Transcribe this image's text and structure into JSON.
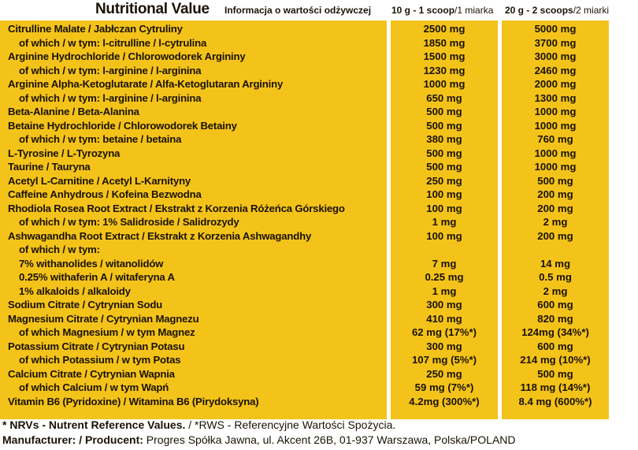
{
  "header": {
    "title": "Nutritional Value",
    "subtitle": "Informacja o wartości odżywczej",
    "col1_bold": "10 g - 1 scoop",
    "col1_rest": "/1 miarka",
    "col2_bold": "20 g - 2 scoops",
    "col2_rest": "/2 miarki"
  },
  "rows": [
    {
      "label": "Citrulline Malate / Jabłczan Cytruliny",
      "v1": "2500 mg",
      "v2": "5000 mg",
      "indent": false
    },
    {
      "label": "of which / w tym: l-citrulline / l-cytrulina",
      "v1": "1850 mg",
      "v2": "3700 mg",
      "indent": true
    },
    {
      "label": "Arginine Hydrochloride / Chlorowodorek Argininy",
      "v1": "1500 mg",
      "v2": "3000 mg",
      "indent": false
    },
    {
      "label": "of which / w tym: l-arginine / l-arginina",
      "v1": "1230 mg",
      "v2": "2460 mg",
      "indent": true
    },
    {
      "label": "Arginine Alpha-Ketoglutarate / Alfa-Ketoglutaran Argininy",
      "v1": "1000 mg",
      "v2": "2000 mg",
      "indent": false
    },
    {
      "label": "of which / w tym: l-arginine / l-arginina",
      "v1": "650 mg",
      "v2": "1300 mg",
      "indent": true
    },
    {
      "label": "Beta-Alanine / Beta-Alanina",
      "v1": "500 mg",
      "v2": "1000 mg",
      "indent": false
    },
    {
      "label": "Betaine Hydrochloride / Chlorowodorek Betainy",
      "v1": "500 mg",
      "v2": "1000 mg",
      "indent": false
    },
    {
      "label": "of which / w tym: betaine / betaina",
      "v1": "380 mg",
      "v2": "760 mg",
      "indent": true
    },
    {
      "label": "L-Tyrosine / L-Tyrozyna",
      "v1": "500 mg",
      "v2": "1000 mg",
      "indent": false
    },
    {
      "label": "Taurine / Tauryna",
      "v1": "500 mg",
      "v2": "1000 mg",
      "indent": false
    },
    {
      "label": "Acetyl L-Carnitine / Acetyl L-Karnityny",
      "v1": "250 mg",
      "v2": "500 mg",
      "indent": false
    },
    {
      "label": "Caffeine Anhydrous / Kofeina Bezwodna",
      "v1": "100 mg",
      "v2": "200 mg",
      "indent": false
    },
    {
      "label": "Rhodiola Rosea Root Extract / Ekstrakt z Korzenia Różeńca Górskiego",
      "v1": "100 mg",
      "v2": "200 mg",
      "indent": false
    },
    {
      "label": "of which / w tym:  1% Salidroside / Salidrozydy",
      "v1": "1 mg",
      "v2": "2 mg",
      "indent": true
    },
    {
      "label": "Ashwagandha Root Extract / Ekstrakt z Korzenia Ashwagandhy",
      "v1": "100 mg",
      "v2": "200 mg",
      "indent": false
    },
    {
      "label": "of which / w tym:",
      "v1": "",
      "v2": "",
      "indent": true
    },
    {
      "label": "7% withanolides / witanolidów",
      "v1": "7 mg",
      "v2": "14 mg",
      "indent": true
    },
    {
      "label": "0.25% withaferin A / witaferyna A",
      "v1": "0.25 mg",
      "v2": "0.5 mg",
      "indent": true
    },
    {
      "label": "1% alkaloids / alkaloidy",
      "v1": "1 mg",
      "v2": "2 mg",
      "indent": true
    },
    {
      "label": "Sodium Citrate / Cytrynian Sodu",
      "v1": "300 mg",
      "v2": "600 mg",
      "indent": false
    },
    {
      "label": "Magnesium Citrate / Cytrynian Magnezu",
      "v1": "410 mg",
      "v2": "820 mg",
      "indent": false
    },
    {
      "label": "of which Magnesium / w tym Magnez",
      "v1": "62 mg (17%*)",
      "v2": "124mg (34%*)",
      "indent": true
    },
    {
      "label": "Potassium Citrate / Cytrynian Potasu",
      "v1": "300 mg",
      "v2": "600 mg",
      "indent": false
    },
    {
      "label": "of which Potassium / w tym Potas",
      "v1": "107 mg (5%*)",
      "v2": "214 mg (10%*)",
      "indent": true
    },
    {
      "label": "Calcium Citrate / Cytrynian Wapnia",
      "v1": "250 mg",
      "v2": "500 mg",
      "indent": false
    },
    {
      "label": "of which Calcium / w tym Wapń",
      "v1": "59 mg (7%*)",
      "v2": "118 mg (14%*)",
      "indent": true
    },
    {
      "label": "Vitamin B6 (Pyridoxine) / Witamina B6 (Pirydoksyna)",
      "v1": "4.2mg (300%*)",
      "v2": "8.4 mg (600%*)",
      "indent": false
    }
  ],
  "footer": {
    "nrv_bold": "* NRVs - Nutrent Reference Values.",
    "nrv_rest": " / *RWS - Referencyjne Wartości Spożycia.",
    "manufacturer_bold": "Manufacturer: / Producent:",
    "manufacturer_rest": " Progres Spółka Jawna, ul. Akcent 26B, 01-937 Warszawa, Polska/POLAND"
  },
  "colors": {
    "panel": "#f4c31a",
    "text": "#1a1206",
    "background": "#ffffff"
  }
}
